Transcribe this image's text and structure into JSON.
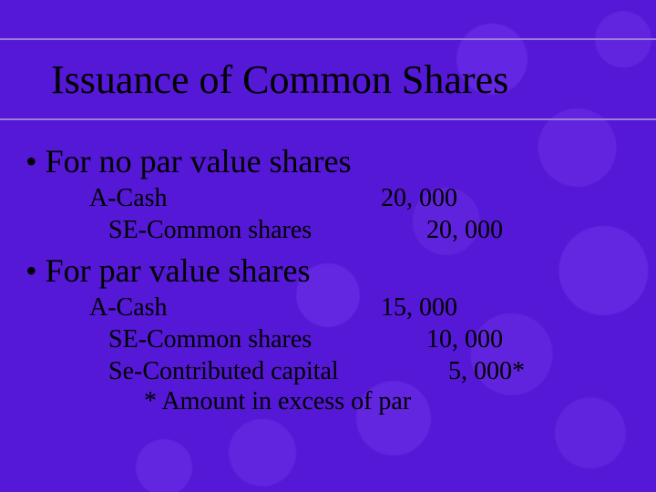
{
  "colors": {
    "slide_bg": "#5a17f0",
    "title_rule": "#9b7fd8",
    "text": "#000000"
  },
  "title": "Issuance of Common Shares",
  "sections": [
    {
      "bullet": "For no par value shares",
      "entries": [
        {
          "label": "A-Cash",
          "amount": "20, 000",
          "indent": 0
        },
        {
          "label": "   SE-Common shares",
          "amount": "20, 000",
          "indent": 1
        }
      ]
    },
    {
      "bullet": "For par value shares",
      "entries": [
        {
          "label": "A-Cash",
          "amount": "15, 000",
          "indent": 0
        },
        {
          "label": "   SE-Common shares",
          "amount": "10, 000",
          "indent": 1
        },
        {
          "label": "   Se-Contributed capital",
          "amount": "  5, 000*",
          "indent": 1
        }
      ],
      "footnote": "* Amount in excess of par"
    }
  ]
}
